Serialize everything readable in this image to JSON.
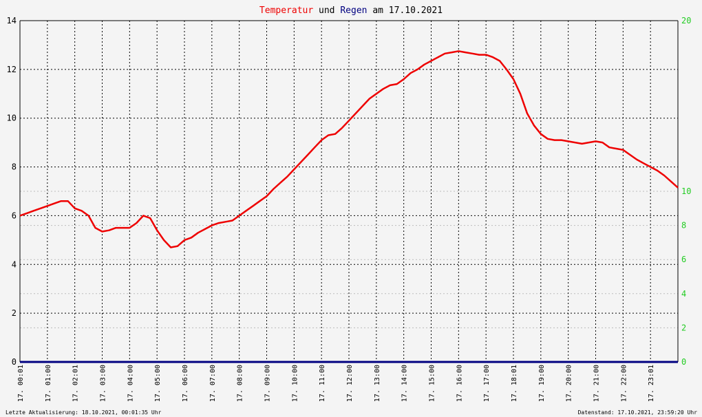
{
  "colors": {
    "temperature": "#ee0000",
    "rain": "#000080",
    "right_axis": "#22cc22",
    "background": "#f4f4f4",
    "grid_major": "#000000",
    "grid_minor": "#bbbbbb"
  },
  "chart_data": {
    "type": "line",
    "title": {
      "parts": [
        "Temperatur",
        "und",
        "Regen",
        "am",
        "17.10.2021"
      ]
    },
    "grid": true,
    "x_tick_labels": [
      "17. 00:01",
      "17. 01:00",
      "17. 02:01",
      "17. 03:00",
      "17. 04:00",
      "17. 05:00",
      "17. 06:00",
      "17. 07:00",
      "17. 08:00",
      "17. 09:00",
      "17. 10:00",
      "17. 11:00",
      "17. 12:00",
      "17. 13:00",
      "17. 14:00",
      "17. 15:00",
      "17. 16:00",
      "17. 17:00",
      "17. 18:01",
      "17. 19:00",
      "17. 20:00",
      "17. 21:00",
      "17. 22:00",
      "17. 23:01"
    ],
    "x_range_hours": [
      0,
      24
    ],
    "y_left": {
      "range": [
        0,
        14
      ],
      "ticks": [
        "0",
        "2",
        "4",
        "6",
        "8",
        "10",
        "12",
        "14"
      ]
    },
    "y_right": {
      "range": [
        0,
        20
      ],
      "ticks": [
        "0",
        "2",
        "4",
        "6",
        "8",
        "10",
        "20"
      ]
    },
    "series": [
      {
        "name": "Temperatur",
        "axis": "left",
        "x_hours": [
          0,
          0.25,
          0.5,
          0.75,
          1.0,
          1.25,
          1.5,
          1.75,
          2.0,
          2.25,
          2.5,
          2.75,
          3.0,
          3.25,
          3.5,
          3.75,
          4.0,
          4.25,
          4.5,
          4.75,
          5.0,
          5.25,
          5.5,
          5.75,
          6.0,
          6.25,
          6.5,
          6.75,
          7.0,
          7.25,
          7.5,
          7.75,
          8.0,
          8.25,
          8.5,
          8.75,
          9.0,
          9.25,
          9.5,
          9.75,
          10.0,
          10.25,
          10.5,
          10.75,
          11.0,
          11.25,
          11.5,
          11.75,
          12.0,
          12.25,
          12.5,
          12.75,
          13.0,
          13.25,
          13.5,
          13.75,
          14.0,
          14.25,
          14.5,
          14.75,
          15.0,
          15.25,
          15.5,
          15.75,
          16.0,
          16.25,
          16.5,
          16.75,
          17.0,
          17.25,
          17.5,
          17.75,
          18.0,
          18.25,
          18.5,
          18.75,
          19.0,
          19.25,
          19.5,
          19.75,
          20.0,
          20.25,
          20.5,
          20.75,
          21.0,
          21.25,
          21.5,
          21.75,
          22.0,
          22.25,
          22.5,
          22.75,
          23.0,
          23.25,
          23.5,
          23.75,
          24.0
        ],
        "values": [
          6.0,
          6.1,
          6.2,
          6.3,
          6.4,
          6.5,
          6.6,
          6.6,
          6.3,
          6.2,
          6.0,
          5.5,
          5.35,
          5.4,
          5.5,
          5.5,
          5.5,
          5.7,
          6.0,
          5.9,
          5.4,
          5.0,
          4.7,
          4.75,
          5.0,
          5.1,
          5.3,
          5.45,
          5.6,
          5.7,
          5.75,
          5.8,
          6.0,
          6.2,
          6.4,
          6.6,
          6.8,
          7.1,
          7.35,
          7.6,
          7.9,
          8.2,
          8.5,
          8.8,
          9.1,
          9.3,
          9.35,
          9.6,
          9.9,
          10.2,
          10.5,
          10.8,
          11.0,
          11.2,
          11.35,
          11.4,
          11.6,
          11.85,
          12.0,
          12.2,
          12.35,
          12.5,
          12.65,
          12.7,
          12.75,
          12.7,
          12.65,
          12.6,
          12.6,
          12.5,
          12.35,
          12.0,
          11.6,
          11.0,
          10.2,
          9.7,
          9.35,
          9.15,
          9.1,
          9.1,
          9.05,
          9.0,
          8.95,
          9.0,
          9.05,
          9.0,
          8.8,
          8.75,
          8.7,
          8.5,
          8.3,
          8.15,
          8.0,
          7.85,
          7.65,
          7.4,
          7.15
        ]
      },
      {
        "name": "Regen",
        "axis": "right",
        "x_hours": [
          0,
          24
        ],
        "values": [
          0,
          0
        ]
      }
    ]
  },
  "footer": {
    "left": "Letzte Aktualisierung: 18.10.2021, 00:01:35 Uhr",
    "right": "Datenstand: 17.10.2021, 23:59:20 Uhr"
  }
}
